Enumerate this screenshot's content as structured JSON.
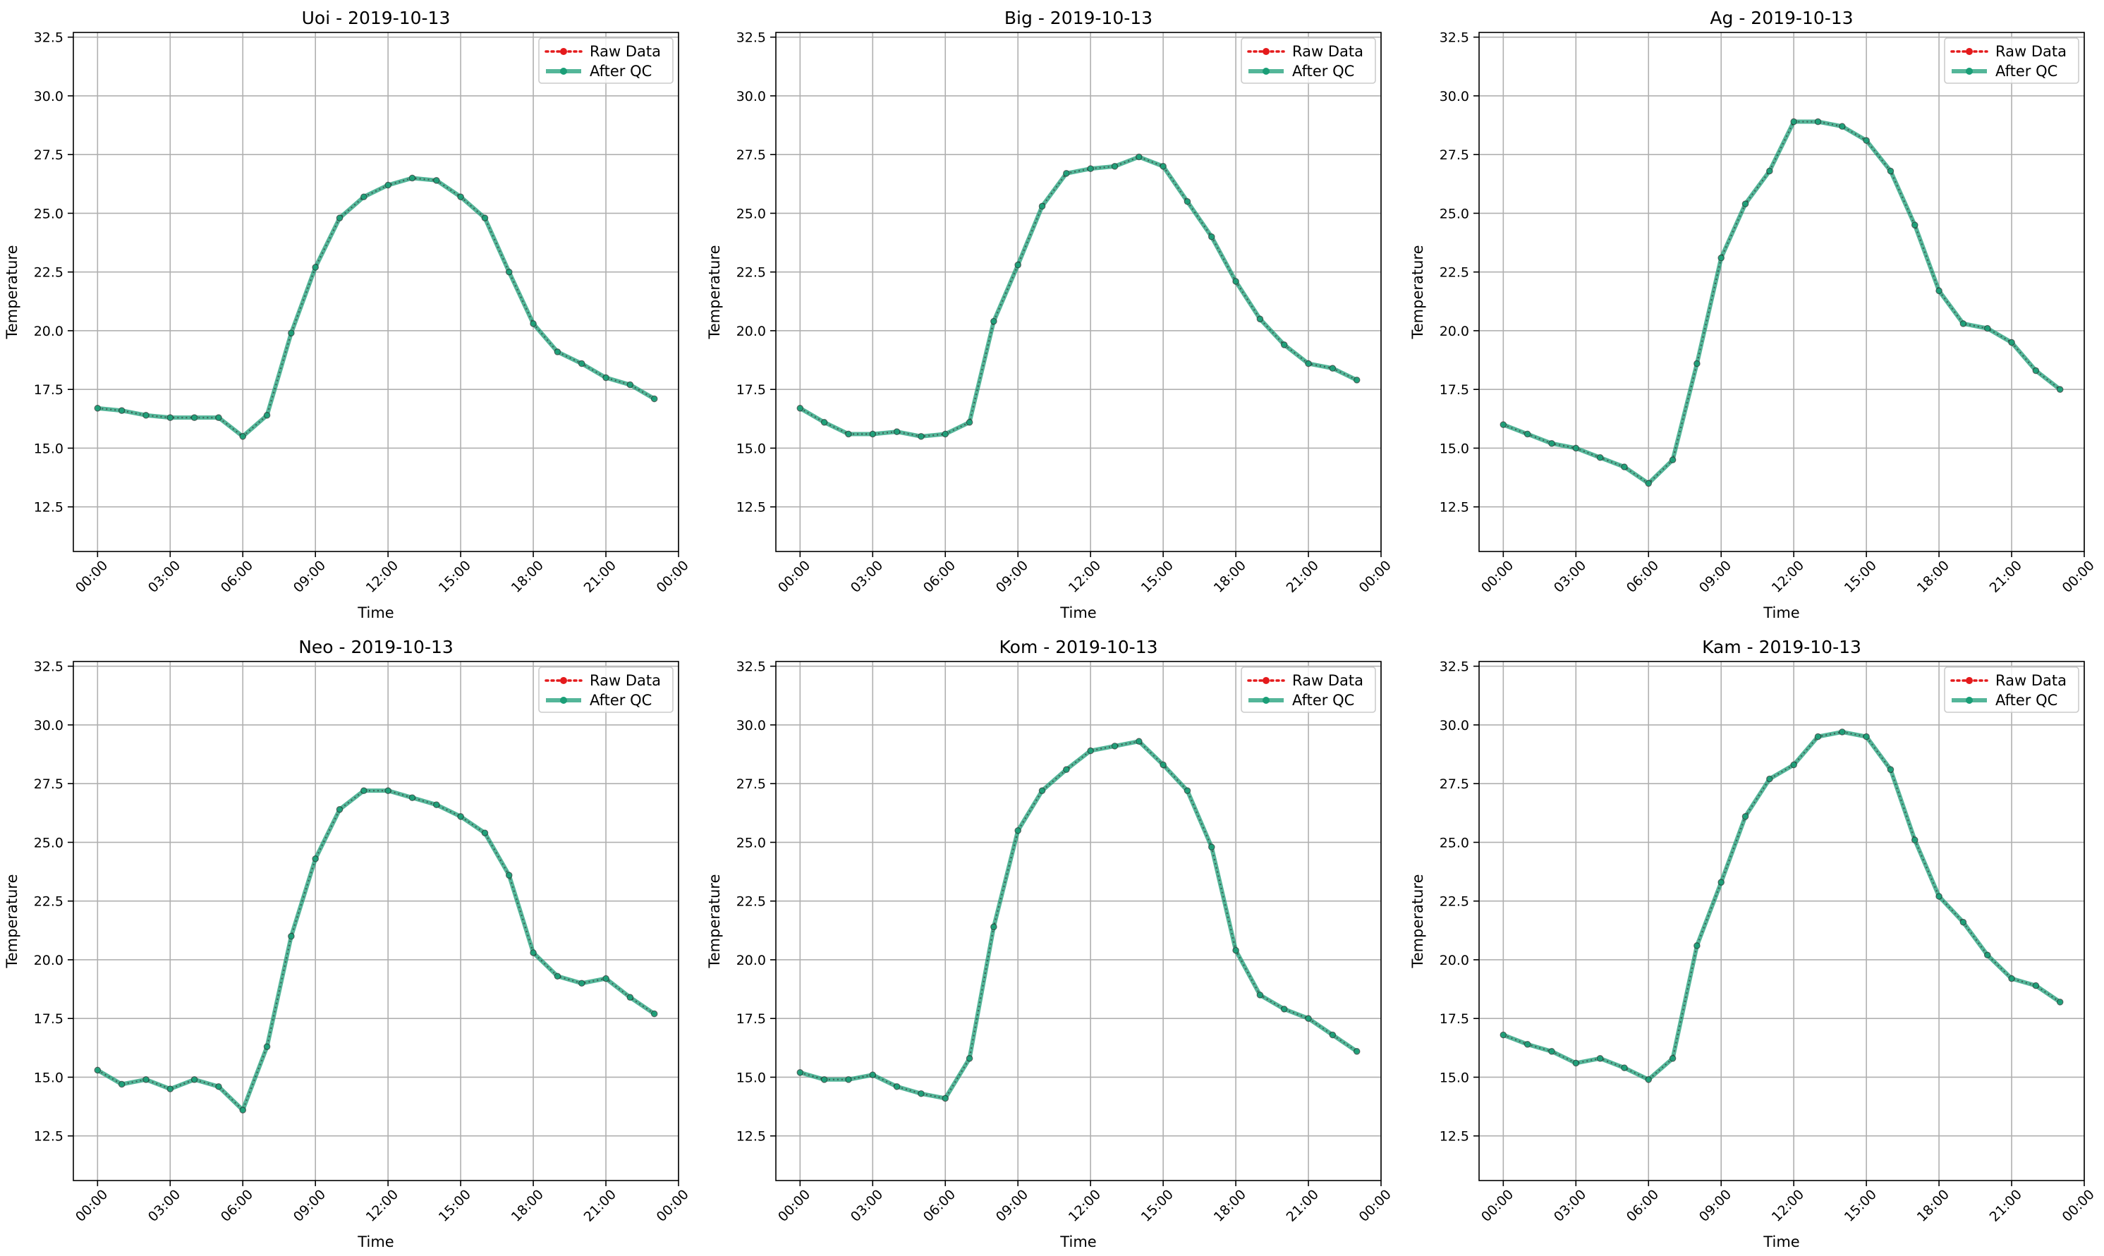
{
  "figure": {
    "raw_color": "#e41a1c",
    "qc_color": "#1b9e77",
    "raw_dot_color": "#222222"
  },
  "chart_data": [
    {
      "type": "line",
      "title": "Uoi - 2019-10-13",
      "xlabel": "Time",
      "ylabel": "Temperature",
      "ylim": [
        10.6,
        32.7
      ],
      "xlim": [
        "-01:00",
        "24:00"
      ],
      "grid": true,
      "legend": "top-right",
      "x_ticks": [
        "00:00",
        "03:00",
        "06:00",
        "09:00",
        "12:00",
        "15:00",
        "18:00",
        "21:00",
        "00:00"
      ],
      "y_ticks": [
        "12.5",
        "15.0",
        "17.5",
        "20.0",
        "22.5",
        "25.0",
        "27.5",
        "30.0",
        "32.5"
      ],
      "x": [
        "00:00",
        "01:00",
        "02:00",
        "03:00",
        "04:00",
        "05:00",
        "06:00",
        "07:00",
        "08:00",
        "09:00",
        "10:00",
        "11:00",
        "12:00",
        "13:00",
        "14:00",
        "15:00",
        "16:00",
        "17:00",
        "18:00",
        "19:00",
        "20:00",
        "21:00",
        "22:00",
        "23:00"
      ],
      "series": [
        {
          "name": "Raw Data",
          "style": "dotted",
          "values": [
            16.7,
            16.6,
            16.4,
            16.3,
            16.3,
            16.3,
            15.5,
            16.4,
            19.9,
            22.7,
            24.8,
            25.7,
            26.2,
            26.5,
            26.4,
            25.7,
            24.8,
            22.5,
            20.3,
            19.1,
            18.6,
            18.0,
            17.7,
            17.1
          ]
        },
        {
          "name": "After QC",
          "style": "solid",
          "values": [
            16.7,
            16.6,
            16.4,
            16.3,
            16.3,
            16.3,
            15.5,
            16.4,
            19.9,
            22.7,
            24.8,
            25.7,
            26.2,
            26.5,
            26.4,
            25.7,
            24.8,
            22.5,
            20.3,
            19.1,
            18.6,
            18.0,
            17.7,
            17.1
          ]
        }
      ]
    },
    {
      "type": "line",
      "title": "Big - 2019-10-13",
      "xlabel": "Time",
      "ylabel": "Temperature",
      "ylim": [
        10.6,
        32.7
      ],
      "xlim": [
        "-01:00",
        "24:00"
      ],
      "grid": true,
      "legend": "top-right",
      "x_ticks": [
        "00:00",
        "03:00",
        "06:00",
        "09:00",
        "12:00",
        "15:00",
        "18:00",
        "21:00",
        "00:00"
      ],
      "y_ticks": [
        "12.5",
        "15.0",
        "17.5",
        "20.0",
        "22.5",
        "25.0",
        "27.5",
        "30.0",
        "32.5"
      ],
      "x": [
        "00:00",
        "01:00",
        "02:00",
        "03:00",
        "04:00",
        "05:00",
        "06:00",
        "07:00",
        "08:00",
        "09:00",
        "10:00",
        "11:00",
        "12:00",
        "13:00",
        "14:00",
        "15:00",
        "16:00",
        "17:00",
        "18:00",
        "19:00",
        "20:00",
        "21:00",
        "22:00",
        "23:00"
      ],
      "series": [
        {
          "name": "Raw Data",
          "style": "dotted",
          "values": [
            16.7,
            16.1,
            15.6,
            15.6,
            15.7,
            15.5,
            15.6,
            16.1,
            20.4,
            22.8,
            25.3,
            26.7,
            26.9,
            27.0,
            27.4,
            27.0,
            25.5,
            24.0,
            22.1,
            20.5,
            19.4,
            18.6,
            18.4,
            17.9
          ]
        },
        {
          "name": "After QC",
          "style": "solid",
          "values": [
            16.7,
            16.1,
            15.6,
            15.6,
            15.7,
            15.5,
            15.6,
            16.1,
            20.4,
            22.8,
            25.3,
            26.7,
            26.9,
            27.0,
            27.4,
            27.0,
            25.5,
            24.0,
            22.1,
            20.5,
            19.4,
            18.6,
            18.4,
            17.9
          ]
        }
      ]
    },
    {
      "type": "line",
      "title": "Ag - 2019-10-13",
      "xlabel": "Time",
      "ylabel": "Temperature",
      "ylim": [
        10.6,
        32.7
      ],
      "xlim": [
        "-01:00",
        "24:00"
      ],
      "grid": true,
      "legend": "top-right",
      "x_ticks": [
        "00:00",
        "03:00",
        "06:00",
        "09:00",
        "12:00",
        "15:00",
        "18:00",
        "21:00",
        "00:00"
      ],
      "y_ticks": [
        "12.5",
        "15.0",
        "17.5",
        "20.0",
        "22.5",
        "25.0",
        "27.5",
        "30.0",
        "32.5"
      ],
      "x": [
        "00:00",
        "01:00",
        "02:00",
        "03:00",
        "04:00",
        "05:00",
        "06:00",
        "07:00",
        "08:00",
        "09:00",
        "10:00",
        "11:00",
        "12:00",
        "13:00",
        "14:00",
        "15:00",
        "16:00",
        "17:00",
        "18:00",
        "19:00",
        "20:00",
        "21:00",
        "22:00",
        "23:00"
      ],
      "series": [
        {
          "name": "Raw Data",
          "style": "dotted",
          "values": [
            16.0,
            15.6,
            15.2,
            15.0,
            14.6,
            14.2,
            13.5,
            14.5,
            18.6,
            23.1,
            25.4,
            26.8,
            28.9,
            28.9,
            28.7,
            28.1,
            26.8,
            24.5,
            21.7,
            20.3,
            20.1,
            19.5,
            18.3,
            17.5
          ]
        },
        {
          "name": "After QC",
          "style": "solid",
          "values": [
            16.0,
            15.6,
            15.2,
            15.0,
            14.6,
            14.2,
            13.5,
            14.5,
            18.6,
            23.1,
            25.4,
            26.8,
            28.9,
            28.9,
            28.7,
            28.1,
            26.8,
            24.5,
            21.7,
            20.3,
            20.1,
            19.5,
            18.3,
            17.5
          ]
        }
      ]
    },
    {
      "type": "line",
      "title": "Neo - 2019-10-13",
      "xlabel": "Time",
      "ylabel": "Temperature",
      "ylim": [
        10.6,
        32.7
      ],
      "xlim": [
        "-01:00",
        "24:00"
      ],
      "grid": true,
      "legend": "top-right",
      "x_ticks": [
        "00:00",
        "03:00",
        "06:00",
        "09:00",
        "12:00",
        "15:00",
        "18:00",
        "21:00",
        "00:00"
      ],
      "y_ticks": [
        "12.5",
        "15.0",
        "17.5",
        "20.0",
        "22.5",
        "25.0",
        "27.5",
        "30.0",
        "32.5"
      ],
      "x": [
        "00:00",
        "01:00",
        "02:00",
        "03:00",
        "04:00",
        "05:00",
        "06:00",
        "07:00",
        "08:00",
        "09:00",
        "10:00",
        "11:00",
        "12:00",
        "13:00",
        "14:00",
        "15:00",
        "16:00",
        "17:00",
        "18:00",
        "19:00",
        "20:00",
        "21:00",
        "22:00",
        "23:00"
      ],
      "series": [
        {
          "name": "Raw Data",
          "style": "dotted",
          "values": [
            15.3,
            14.7,
            14.9,
            14.5,
            14.9,
            14.6,
            13.6,
            16.3,
            21.0,
            24.3,
            26.4,
            27.2,
            27.2,
            26.9,
            26.6,
            26.1,
            25.4,
            23.6,
            20.3,
            19.3,
            19.0,
            19.2,
            18.4,
            17.7
          ]
        },
        {
          "name": "After QC",
          "style": "solid",
          "values": [
            15.3,
            14.7,
            14.9,
            14.5,
            14.9,
            14.6,
            13.6,
            16.3,
            21.0,
            24.3,
            26.4,
            27.2,
            27.2,
            26.9,
            26.6,
            26.1,
            25.4,
            23.6,
            20.3,
            19.3,
            19.0,
            19.2,
            18.4,
            17.7
          ]
        }
      ]
    },
    {
      "type": "line",
      "title": "Kom - 2019-10-13",
      "xlabel": "Time",
      "ylabel": "Temperature",
      "ylim": [
        10.6,
        32.7
      ],
      "xlim": [
        "-01:00",
        "24:00"
      ],
      "grid": true,
      "legend": "top-right",
      "x_ticks": [
        "00:00",
        "03:00",
        "06:00",
        "09:00",
        "12:00",
        "15:00",
        "18:00",
        "21:00",
        "00:00"
      ],
      "y_ticks": [
        "12.5",
        "15.0",
        "17.5",
        "20.0",
        "22.5",
        "25.0",
        "27.5",
        "30.0",
        "32.5"
      ],
      "x": [
        "00:00",
        "01:00",
        "02:00",
        "03:00",
        "04:00",
        "05:00",
        "06:00",
        "07:00",
        "08:00",
        "09:00",
        "10:00",
        "11:00",
        "12:00",
        "13:00",
        "14:00",
        "15:00",
        "16:00",
        "17:00",
        "18:00",
        "19:00",
        "20:00",
        "21:00",
        "22:00",
        "23:00"
      ],
      "series": [
        {
          "name": "Raw Data",
          "style": "dotted",
          "values": [
            15.2,
            14.9,
            14.9,
            15.1,
            14.6,
            14.3,
            14.1,
            15.8,
            21.4,
            25.5,
            27.2,
            28.1,
            28.9,
            29.1,
            29.3,
            28.3,
            27.2,
            24.8,
            20.4,
            18.5,
            17.9,
            17.5,
            16.8,
            16.1
          ]
        },
        {
          "name": "After QC",
          "style": "solid",
          "values": [
            15.2,
            14.9,
            14.9,
            15.1,
            14.6,
            14.3,
            14.1,
            15.8,
            21.4,
            25.5,
            27.2,
            28.1,
            28.9,
            29.1,
            29.3,
            28.3,
            27.2,
            24.8,
            20.4,
            18.5,
            17.9,
            17.5,
            16.8,
            16.1
          ]
        }
      ]
    },
    {
      "type": "line",
      "title": "Kam - 2019-10-13",
      "xlabel": "Time",
      "ylabel": "Temperature",
      "ylim": [
        10.6,
        32.7
      ],
      "xlim": [
        "-01:00",
        "24:00"
      ],
      "grid": true,
      "legend": "top-right",
      "x_ticks": [
        "00:00",
        "03:00",
        "06:00",
        "09:00",
        "12:00",
        "15:00",
        "18:00",
        "21:00",
        "00:00"
      ],
      "y_ticks": [
        "12.5",
        "15.0",
        "17.5",
        "20.0",
        "22.5",
        "25.0",
        "27.5",
        "30.0",
        "32.5"
      ],
      "x": [
        "00:00",
        "01:00",
        "02:00",
        "03:00",
        "04:00",
        "05:00",
        "06:00",
        "07:00",
        "08:00",
        "09:00",
        "10:00",
        "11:00",
        "12:00",
        "13:00",
        "14:00",
        "15:00",
        "16:00",
        "17:00",
        "18:00",
        "19:00",
        "20:00",
        "21:00",
        "22:00",
        "23:00"
      ],
      "series": [
        {
          "name": "Raw Data",
          "style": "dotted",
          "values": [
            16.8,
            16.4,
            16.1,
            15.6,
            15.8,
            15.4,
            14.9,
            15.8,
            20.6,
            23.3,
            26.1,
            27.7,
            28.3,
            29.5,
            29.7,
            29.5,
            28.1,
            25.1,
            22.7,
            21.6,
            20.2,
            19.2,
            18.9,
            18.2
          ]
        },
        {
          "name": "After QC",
          "style": "solid",
          "values": [
            16.8,
            16.4,
            16.1,
            15.6,
            15.8,
            15.4,
            14.9,
            15.8,
            20.6,
            23.3,
            26.1,
            27.7,
            28.3,
            29.5,
            29.7,
            29.5,
            28.1,
            25.1,
            22.7,
            21.6,
            20.2,
            19.2,
            18.9,
            18.2
          ]
        }
      ]
    }
  ]
}
